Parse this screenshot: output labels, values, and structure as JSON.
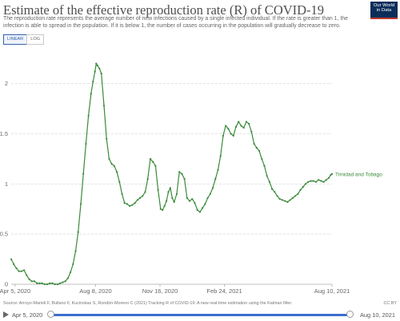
{
  "header": {
    "title": "Estimate of the effective reproduction rate (R) of COVID-19",
    "subtitle": "The reproduction rate represents the average number of new infections caused by a single infected individual. If the rate is greater than 1, the infection is able to spread in the population. If it is below 1, the number of cases occurring in the population will gradually decrease to zero.",
    "logo_line1": "Our World",
    "logo_line2": "in Data"
  },
  "scale_toggle": {
    "linear": "LINEAR",
    "log": "LOG",
    "active": "linear"
  },
  "footer": {
    "source": "Source: Arroyo-Marioli F, Bullano F, Kucinskas S, Rondón-Moreno C (2021) Tracking R of COVID-19: A new real-time estimation using the Kalman filter.",
    "license": "CC BY"
  },
  "timeline": {
    "start": "Apr 5, 2020",
    "end": "Aug 10, 2021"
  },
  "colors": {
    "series": "#3a8a3a",
    "grid": "#dddddd",
    "slider": "#3b6fd0"
  },
  "chart_data": {
    "type": "line",
    "title": "Estimate of the effective reproduction rate (R) of COVID-19",
    "x_type": "date",
    "xlim": [
      "2020-03-30",
      "2021-08-10"
    ],
    "ylim": [
      0,
      2.3
    ],
    "y_ticks": [
      0,
      0.5,
      1,
      1.5,
      2
    ],
    "y_tick_labels": [
      "0",
      "0.5",
      "1",
      "1.5",
      "2"
    ],
    "x_ticks": [
      "2020-04-05",
      "2020-08-08",
      "2020-11-16",
      "2021-02-24",
      "2021-08-10"
    ],
    "x_tick_labels": [
      "Apr 5, 2020",
      "Aug 8, 2020",
      "Nov 16, 2020",
      "Feb 24, 2021",
      "Aug 10, 2021"
    ],
    "grid": "horizontal dashed",
    "label_placement": "end of line",
    "series": [
      {
        "name": "Trinidad and Tobago",
        "x": [
          "2020-03-30",
          "2020-04-03",
          "2020-04-07",
          "2020-04-11",
          "2020-04-15",
          "2020-04-19",
          "2020-04-23",
          "2020-04-27",
          "2020-05-01",
          "2020-05-05",
          "2020-05-09",
          "2020-05-13",
          "2020-05-17",
          "2020-05-21",
          "2020-05-25",
          "2020-05-29",
          "2020-06-02",
          "2020-06-06",
          "2020-06-10",
          "2020-06-14",
          "2020-06-18",
          "2020-06-22",
          "2020-06-26",
          "2020-06-30",
          "2020-07-04",
          "2020-07-08",
          "2020-07-12",
          "2020-07-16",
          "2020-07-20",
          "2020-07-24",
          "2020-07-28",
          "2020-08-01",
          "2020-08-04",
          "2020-08-07",
          "2020-08-09",
          "2020-08-11",
          "2020-08-14",
          "2020-08-17",
          "2020-08-21",
          "2020-08-25",
          "2020-08-29",
          "2020-09-02",
          "2020-09-06",
          "2020-09-10",
          "2020-09-14",
          "2020-09-18",
          "2020-09-22",
          "2020-09-26",
          "2020-09-30",
          "2020-10-04",
          "2020-10-08",
          "2020-10-12",
          "2020-10-16",
          "2020-10-20",
          "2020-10-24",
          "2020-10-28",
          "2020-11-01",
          "2020-11-05",
          "2020-11-09",
          "2020-11-13",
          "2020-11-17",
          "2020-11-20",
          "2020-11-23",
          "2020-11-26",
          "2020-11-29",
          "2020-12-02",
          "2020-12-05",
          "2020-12-08",
          "2020-12-12",
          "2020-12-16",
          "2020-12-20",
          "2020-12-24",
          "2020-12-28",
          "2021-01-01",
          "2021-01-05",
          "2021-01-09",
          "2021-01-13",
          "2021-01-17",
          "2021-01-21",
          "2021-01-25",
          "2021-01-29",
          "2021-02-02",
          "2021-02-06",
          "2021-02-10",
          "2021-02-14",
          "2021-02-18",
          "2021-02-22",
          "2021-02-26",
          "2021-03-02",
          "2021-03-06",
          "2021-03-10",
          "2021-03-14",
          "2021-03-18",
          "2021-03-22",
          "2021-03-26",
          "2021-03-30",
          "2021-04-03",
          "2021-04-07",
          "2021-04-11",
          "2021-04-15",
          "2021-04-19",
          "2021-04-23",
          "2021-04-27",
          "2021-05-01",
          "2021-05-05",
          "2021-05-09",
          "2021-05-13",
          "2021-05-17",
          "2021-05-21",
          "2021-05-25",
          "2021-05-29",
          "2021-06-02",
          "2021-06-06",
          "2021-06-10",
          "2021-06-14",
          "2021-06-18",
          "2021-06-22",
          "2021-06-26",
          "2021-06-30",
          "2021-07-04",
          "2021-07-08",
          "2021-07-12",
          "2021-07-16",
          "2021-07-20",
          "2021-07-24",
          "2021-07-28",
          "2021-08-01",
          "2021-08-05",
          "2021-08-08",
          "2021-08-10"
        ],
        "y": [
          0.25,
          0.2,
          0.16,
          0.13,
          0.13,
          0.14,
          0.09,
          0.05,
          0.03,
          0.03,
          0.01,
          0.01,
          0.01,
          0.0,
          0.0,
          0.01,
          0.01,
          0.0,
          0.0,
          0.01,
          0.02,
          0.03,
          0.06,
          0.12,
          0.2,
          0.33,
          0.52,
          0.8,
          1.1,
          1.4,
          1.68,
          1.9,
          2.02,
          2.12,
          2.2,
          2.18,
          2.15,
          2.1,
          1.78,
          1.45,
          1.25,
          1.2,
          1.18,
          1.12,
          1.02,
          0.9,
          0.81,
          0.8,
          0.78,
          0.79,
          0.81,
          0.84,
          0.86,
          0.88,
          0.92,
          1.05,
          1.25,
          1.22,
          1.18,
          0.94,
          0.75,
          0.74,
          0.78,
          0.83,
          0.92,
          0.96,
          0.86,
          0.82,
          0.9,
          1.12,
          1.1,
          1.05,
          0.86,
          0.83,
          0.85,
          0.81,
          0.74,
          0.72,
          0.76,
          0.8,
          0.86,
          0.9,
          0.96,
          1.05,
          1.14,
          1.28,
          1.48,
          1.58,
          1.55,
          1.5,
          1.48,
          1.57,
          1.62,
          1.58,
          1.56,
          1.62,
          1.6,
          1.52,
          1.4,
          1.36,
          1.33,
          1.25,
          1.18,
          1.08,
          1.02,
          0.95,
          0.92,
          0.88,
          0.85,
          0.84,
          0.83,
          0.82,
          0.84,
          0.86,
          0.88,
          0.9,
          0.94,
          0.97,
          1.0,
          1.02,
          1.03,
          1.03,
          1.02,
          1.04,
          1.03,
          1.02,
          1.04,
          1.06,
          1.09,
          1.1
        ]
      }
    ]
  }
}
